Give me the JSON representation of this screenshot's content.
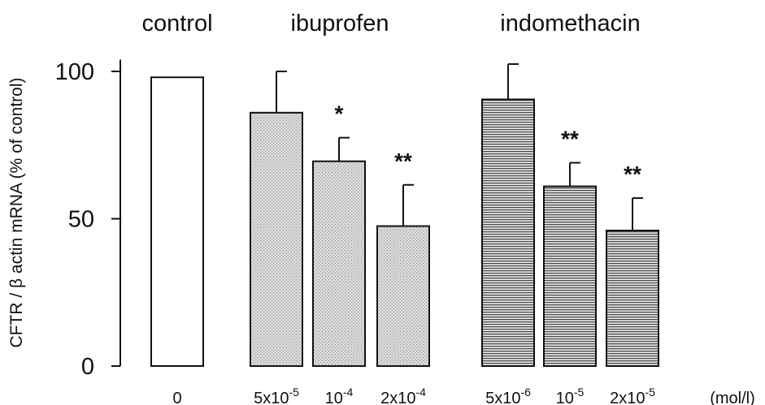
{
  "chart_data": {
    "type": "bar",
    "ylabel": "CFTR / β actin mRNA   (% of control)",
    "x_unit": "(mol/l)",
    "yticks": [
      0,
      50,
      100
    ],
    "ylim": [
      0,
      104
    ],
    "groups": [
      {
        "label": "control",
        "bars": [
          0
        ]
      },
      {
        "label": "ibuprofen",
        "bars": [
          1,
          2,
          3
        ]
      },
      {
        "label": "indomethacin",
        "bars": [
          4,
          5,
          6
        ]
      }
    ],
    "bars": [
      {
        "dose": "0",
        "base": "0",
        "exp": "",
        "value": 98,
        "error": 0,
        "sig": "",
        "fill": "white"
      },
      {
        "dose": "5x10-5",
        "base": "5x10",
        "exp": "-5",
        "value": 86,
        "error": 14,
        "sig": "",
        "fill": "stipple"
      },
      {
        "dose": "10-4",
        "base": "10",
        "exp": "-4",
        "value": 69.5,
        "error": 8,
        "sig": "*",
        "fill": "stipple"
      },
      {
        "dose": "2x10-4",
        "base": "2x10",
        "exp": "-4",
        "value": 47.5,
        "error": 14,
        "sig": "**",
        "fill": "stipple"
      },
      {
        "dose": "5x10-6",
        "base": "5x10",
        "exp": "-6",
        "value": 90.5,
        "error": 12,
        "sig": "",
        "fill": "stripes"
      },
      {
        "dose": "10-5",
        "base": "10",
        "exp": "-5",
        "value": 61,
        "error": 8,
        "sig": "**",
        "fill": "stripes"
      },
      {
        "dose": "2x10-5",
        "base": "2x10",
        "exp": "-5",
        "value": 46,
        "error": 11,
        "sig": "**",
        "fill": "stripes"
      }
    ]
  }
}
